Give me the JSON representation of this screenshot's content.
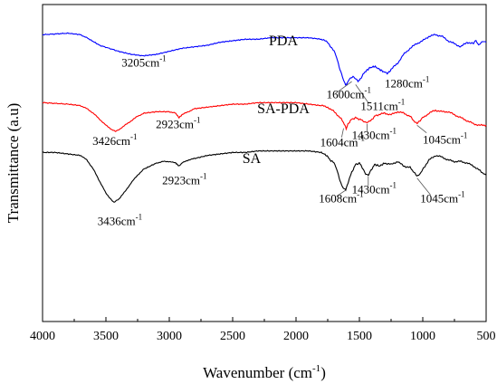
{
  "chart_data": {
    "type": "line",
    "xlabel": "Wavenumber (cm",
    "xlabel_sup": "-1",
    "xlabel_tail": ")",
    "ylabel": "Transmittance (a.u)",
    "xlim": [
      4000,
      500
    ],
    "x_ticks": [
      4000,
      3500,
      3000,
      2500,
      2000,
      1500,
      1000,
      500
    ],
    "x_tick_labels": [
      "4000",
      "3500",
      "3000",
      "2500",
      "2000",
      "1500",
      "1000",
      "500"
    ],
    "y_ticks_shown": false,
    "grid": false,
    "legend": "none (series labelled inline)",
    "series": [
      {
        "name": "PDA",
        "color": "#0000ff",
        "x": [
          4000,
          3800,
          3700,
          3650,
          3550,
          3400,
          3300,
          3205,
          3100,
          3000,
          2900,
          2800,
          2700,
          2600,
          2500,
          2400,
          2300,
          2200,
          2100,
          2000,
          1900,
          1800,
          1750,
          1700,
          1680,
          1660,
          1640,
          1620,
          1610,
          1600,
          1590,
          1570,
          1550,
          1530,
          1511,
          1490,
          1460,
          1420,
          1380,
          1340,
          1300,
          1280,
          1250,
          1200,
          1150,
          1100,
          1050,
          1000,
          950,
          900,
          850,
          800,
          750,
          700,
          650,
          600,
          580,
          560,
          540,
          520,
          500
        ],
        "y": [
          0.95,
          0.96,
          0.95,
          0.93,
          0.88,
          0.84,
          0.82,
          0.81,
          0.82,
          0.84,
          0.86,
          0.87,
          0.88,
          0.9,
          0.91,
          0.92,
          0.92,
          0.93,
          0.93,
          0.93,
          0.93,
          0.92,
          0.9,
          0.84,
          0.8,
          0.74,
          0.69,
          0.64,
          0.62,
          0.62,
          0.64,
          0.66,
          0.67,
          0.66,
          0.64,
          0.66,
          0.7,
          0.73,
          0.74,
          0.72,
          0.7,
          0.69,
          0.72,
          0.76,
          0.82,
          0.86,
          0.89,
          0.91,
          0.94,
          0.95,
          0.94,
          0.91,
          0.89,
          0.87,
          0.9,
          0.89,
          0.91,
          0.88,
          0.9,
          0.91,
          0.9
        ]
      },
      {
        "name": "SA-PDA",
        "color": "#ff0000",
        "x": [
          4000,
          3800,
          3700,
          3650,
          3600,
          3550,
          3500,
          3450,
          3426,
          3400,
          3350,
          3300,
          3250,
          3200,
          3100,
          3000,
          2950,
          2923,
          2900,
          2850,
          2800,
          2700,
          2600,
          2500,
          2400,
          2300,
          2200,
          2100,
          2000,
          1900,
          1800,
          1750,
          1700,
          1650,
          1620,
          1604,
          1590,
          1560,
          1530,
          1500,
          1470,
          1450,
          1430,
          1410,
          1380,
          1350,
          1300,
          1250,
          1200,
          1150,
          1100,
          1070,
          1045,
          1020,
          1000,
          950,
          900,
          850,
          800,
          750,
          700,
          650,
          600,
          550,
          500
        ],
        "y": [
          0.5,
          0.49,
          0.48,
          0.46,
          0.43,
          0.39,
          0.35,
          0.32,
          0.31,
          0.32,
          0.35,
          0.38,
          0.41,
          0.43,
          0.44,
          0.44,
          0.43,
          0.4,
          0.42,
          0.44,
          0.46,
          0.47,
          0.48,
          0.49,
          0.49,
          0.5,
          0.5,
          0.5,
          0.5,
          0.49,
          0.48,
          0.47,
          0.44,
          0.4,
          0.36,
          0.33,
          0.36,
          0.39,
          0.4,
          0.39,
          0.38,
          0.37,
          0.37,
          0.38,
          0.41,
          0.42,
          0.43,
          0.42,
          0.44,
          0.43,
          0.41,
          0.38,
          0.36,
          0.38,
          0.4,
          0.43,
          0.45,
          0.44,
          0.44,
          0.42,
          0.4,
          0.38,
          0.36,
          0.35,
          0.35
        ]
      },
      {
        "name": "SA",
        "color": "#000000",
        "x": [
          4000,
          3900,
          3800,
          3700,
          3650,
          3600,
          3550,
          3500,
          3450,
          3436,
          3400,
          3350,
          3300,
          3250,
          3200,
          3100,
          3050,
          3000,
          2950,
          2923,
          2900,
          2850,
          2800,
          2700,
          2600,
          2500,
          2400,
          2300,
          2200,
          2100,
          2000,
          1900,
          1800,
          1760,
          1730,
          1700,
          1680,
          1660,
          1640,
          1620,
          1608,
          1590,
          1560,
          1530,
          1500,
          1470,
          1450,
          1430,
          1410,
          1380,
          1340,
          1300,
          1250,
          1200,
          1150,
          1100,
          1070,
          1045,
          1020,
          1000,
          950,
          900,
          850,
          800,
          750,
          700,
          650,
          600,
          550,
          520,
          500
        ],
        "y": [
          0.17,
          0.17,
          0.16,
          0.15,
          0.12,
          0.06,
          -0.02,
          -0.1,
          -0.15,
          -0.16,
          -0.14,
          -0.09,
          -0.03,
          0.02,
          0.06,
          0.1,
          0.11,
          0.11,
          0.1,
          0.08,
          0.1,
          0.12,
          0.13,
          0.15,
          0.16,
          0.17,
          0.17,
          0.18,
          0.18,
          0.18,
          0.18,
          0.18,
          0.17,
          0.15,
          0.12,
          0.1,
          0.06,
          0.0,
          -0.05,
          -0.07,
          -0.08,
          -0.03,
          0.04,
          0.09,
          0.1,
          0.06,
          0.03,
          0.02,
          0.05,
          0.09,
          0.08,
          0.1,
          0.09,
          0.11,
          0.08,
          0.07,
          0.04,
          0.01,
          0.03,
          0.06,
          0.12,
          0.15,
          0.14,
          0.12,
          0.11,
          0.11,
          0.1,
          0.08,
          0.05,
          0.03,
          0.02
        ]
      }
    ],
    "ylim": [
      -0.95,
      1.15
    ],
    "series_labels": [
      {
        "text": "PDA",
        "x": 2100,
        "y": 0.88
      },
      {
        "text": "SA-PDA",
        "x": 2100,
        "y": 0.43
      },
      {
        "text": "SA",
        "x": 2350,
        "y": 0.1
      }
    ],
    "annotations": [
      {
        "text": "3205cm",
        "sup": "-1",
        "x": 3200,
        "y": 0.74,
        "anchor": "middle"
      },
      {
        "text": "1600cm",
        "sup": "-1",
        "x": 1760,
        "y": 0.53,
        "anchor": "start"
      },
      {
        "text": "1511cm",
        "sup": "-1",
        "x": 1490,
        "y": 0.45,
        "anchor": "start"
      },
      {
        "text": "1280cm",
        "sup": "-1",
        "x": 1300,
        "y": 0.6,
        "anchor": "start"
      },
      {
        "text": "3426cm",
        "sup": "-1",
        "x": 3430,
        "y": 0.22,
        "anchor": "middle"
      },
      {
        "text": "2923cm",
        "sup": "-1",
        "x": 2930,
        "y": 0.33,
        "anchor": "middle"
      },
      {
        "text": "1604cm",
        "sup": "-1",
        "x": 1810,
        "y": 0.21,
        "anchor": "start"
      },
      {
        "text": "1430cm",
        "sup": "-1",
        "x": 1560,
        "y": 0.26,
        "anchor": "start"
      },
      {
        "text": "1045cm",
        "sup": "-1",
        "x": 1000,
        "y": 0.23,
        "anchor": "start"
      },
      {
        "text": "3436cm",
        "sup": "-1",
        "x": 3390,
        "y": -0.31,
        "anchor": "middle"
      },
      {
        "text": "2923cm",
        "sup": "-1",
        "x": 2880,
        "y": -0.04,
        "anchor": "middle"
      },
      {
        "text": "1608cm",
        "sup": "-1",
        "x": 1820,
        "y": -0.16,
        "anchor": "start"
      },
      {
        "text": "1430cm",
        "sup": "-1",
        "x": 1560,
        "y": -0.1,
        "anchor": "start"
      },
      {
        "text": "1045cm",
        "sup": "-1",
        "x": 1020,
        "y": -0.16,
        "anchor": "start"
      }
    ],
    "leader_lines": [
      {
        "x1": 1560,
        "y1": 0.64,
        "x2": 1690,
        "y2": 0.56
      },
      {
        "x1": 1530,
        "y1": 0.62,
        "x2": 1430,
        "y2": 0.5
      },
      {
        "x1": 1625,
        "y1": 0.33,
        "x2": 1640,
        "y2": 0.27
      },
      {
        "x1": 1440,
        "y1": 0.36,
        "x2": 1440,
        "y2": 0.31
      },
      {
        "x1": 1045,
        "y1": 0.35,
        "x2": 970,
        "y2": 0.3
      },
      {
        "x1": 1608,
        "y1": -0.08,
        "x2": 1680,
        "y2": -0.12
      },
      {
        "x1": 1430,
        "y1": 0.01,
        "x2": 1430,
        "y2": -0.05
      },
      {
        "x1": 1045,
        "y1": 0.0,
        "x2": 940,
        "y2": -0.11
      }
    ]
  }
}
